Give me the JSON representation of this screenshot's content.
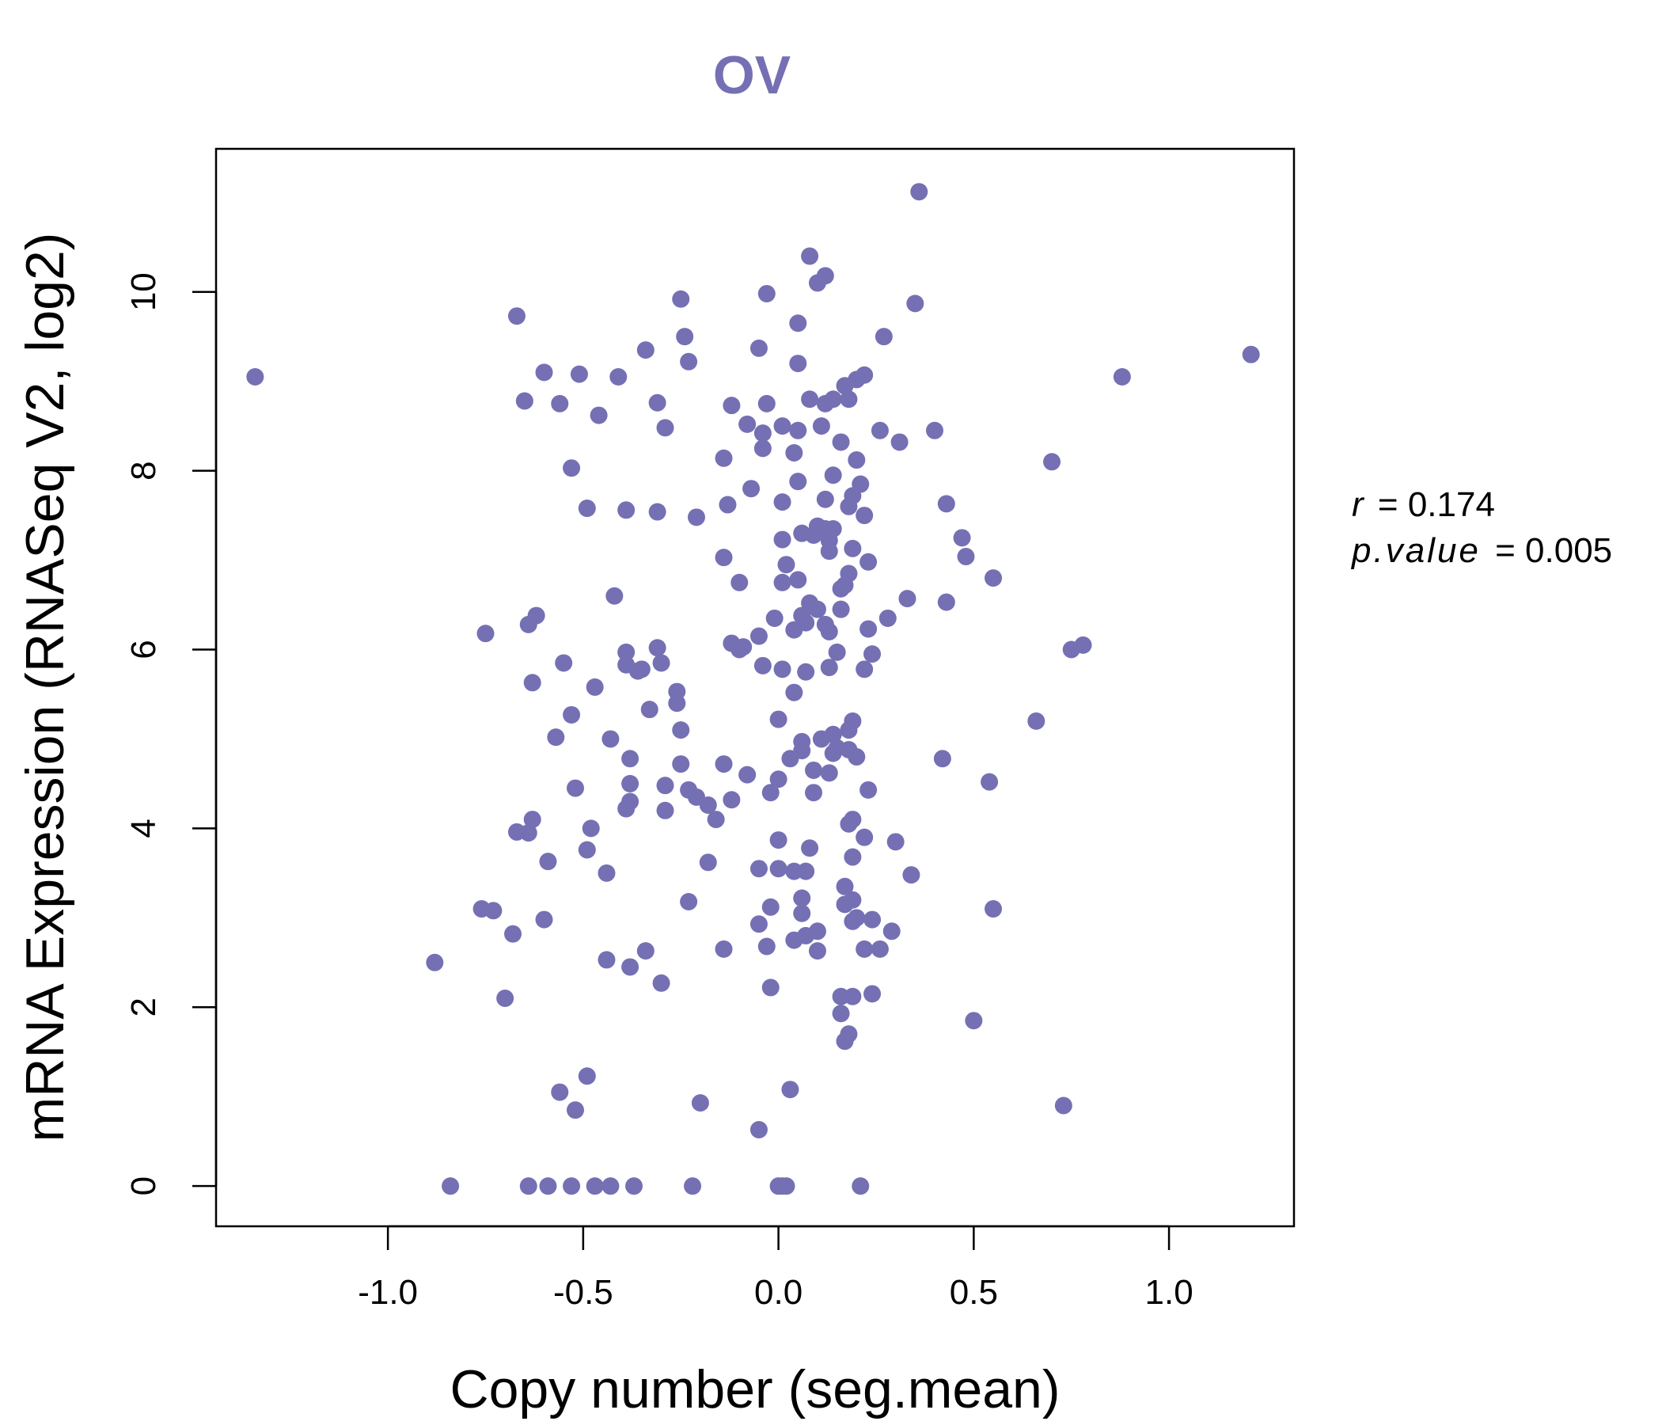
{
  "chart_data": {
    "type": "scatter",
    "title": "OV",
    "xlabel": "Copy number (seg.mean)",
    "ylabel": "mRNA Expression (RNASeq V2, log2)",
    "xlim": [
      -1.44,
      1.32
    ],
    "ylim": [
      -0.45,
      11.6
    ],
    "x_ticks": [
      -1.0,
      -0.5,
      0.0,
      0.5,
      1.0
    ],
    "x_tick_labels": [
      "-1.0",
      "-0.5",
      "0.0",
      "0.5",
      "1.0"
    ],
    "y_ticks": [
      0,
      2,
      4,
      6,
      8,
      10
    ],
    "y_tick_labels": [
      "0",
      "2",
      "4",
      "6",
      "8",
      "10"
    ],
    "grid": false,
    "point_color": "#7570b3",
    "stats": {
      "r_label": "r",
      "r_value": "0.174",
      "p_label": "p.value",
      "p_value": "0.005"
    },
    "points": [
      [
        -1.34,
        9.05
      ],
      [
        1.21,
        9.3
      ],
      [
        0.88,
        9.05
      ],
      [
        0.36,
        11.12
      ],
      [
        0.08,
        10.4
      ],
      [
        0.12,
        10.18
      ],
      [
        0.1,
        10.1
      ],
      [
        -0.03,
        9.98
      ],
      [
        -0.25,
        9.92
      ],
      [
        0.35,
        9.87
      ],
      [
        -0.67,
        9.73
      ],
      [
        0.05,
        9.65
      ],
      [
        0.27,
        9.5
      ],
      [
        -0.24,
        9.5
      ],
      [
        -0.34,
        9.35
      ],
      [
        -0.05,
        9.37
      ],
      [
        -0.23,
        9.22
      ],
      [
        0.05,
        9.2
      ],
      [
        -0.6,
        9.1
      ],
      [
        -0.51,
        9.08
      ],
      [
        -0.41,
        9.05
      ],
      [
        0.22,
        9.07
      ],
      [
        0.2,
        9.02
      ],
      [
        0.17,
        8.95
      ],
      [
        0.08,
        8.8
      ],
      [
        0.12,
        8.75
      ],
      [
        0.14,
        8.8
      ],
      [
        0.18,
        8.8
      ],
      [
        -0.65,
        8.78
      ],
      [
        -0.56,
        8.75
      ],
      [
        -0.31,
        8.76
      ],
      [
        -0.03,
        8.75
      ],
      [
        -0.12,
        8.73
      ],
      [
        -0.46,
        8.62
      ],
      [
        -0.08,
        8.52
      ],
      [
        0.01,
        8.5
      ],
      [
        0.11,
        8.5
      ],
      [
        0.05,
        8.45
      ],
      [
        -0.04,
        8.42
      ],
      [
        -0.29,
        8.48
      ],
      [
        0.26,
        8.45
      ],
      [
        0.4,
        8.45
      ],
      [
        0.16,
        8.32
      ],
      [
        0.31,
        8.32
      ],
      [
        0.04,
        8.2
      ],
      [
        -0.04,
        8.25
      ],
      [
        -0.14,
        8.14
      ],
      [
        0.2,
        8.12
      ],
      [
        0.7,
        8.1
      ],
      [
        -0.53,
        8.03
      ],
      [
        0.14,
        7.95
      ],
      [
        0.05,
        7.88
      ],
      [
        0.21,
        7.85
      ],
      [
        -0.07,
        7.8
      ],
      [
        0.19,
        7.72
      ],
      [
        0.12,
        7.68
      ],
      [
        0.01,
        7.65
      ],
      [
        0.43,
        7.63
      ],
      [
        -0.13,
        7.62
      ],
      [
        0.18,
        7.6
      ],
      [
        -0.49,
        7.58
      ],
      [
        -0.39,
        7.56
      ],
      [
        -0.31,
        7.54
      ],
      [
        0.22,
        7.5
      ],
      [
        -0.21,
        7.48
      ],
      [
        0.1,
        7.38
      ],
      [
        0.12,
        7.35
      ],
      [
        0.14,
        7.35
      ],
      [
        0.06,
        7.3
      ],
      [
        0.09,
        7.28
      ],
      [
        0.47,
        7.25
      ],
      [
        0.01,
        7.23
      ],
      [
        0.13,
        7.22
      ],
      [
        0.19,
        7.13
      ],
      [
        0.13,
        7.1
      ],
      [
        -0.14,
        7.03
      ],
      [
        0.48,
        7.04
      ],
      [
        0.23,
        6.98
      ],
      [
        0.02,
        6.95
      ],
      [
        0.18,
        6.85
      ],
      [
        0.55,
        6.8
      ],
      [
        0.05,
        6.78
      ],
      [
        -0.1,
        6.75
      ],
      [
        0.01,
        6.75
      ],
      [
        0.17,
        6.72
      ],
      [
        0.16,
        6.68
      ],
      [
        0.33,
        6.57
      ],
      [
        -0.42,
        6.6
      ],
      [
        0.43,
        6.53
      ],
      [
        0.08,
        6.52
      ],
      [
        0.1,
        6.45
      ],
      [
        0.16,
        6.45
      ],
      [
        0.06,
        6.38
      ],
      [
        0.28,
        6.35
      ],
      [
        -0.01,
        6.35
      ],
      [
        0.07,
        6.3
      ],
      [
        0.12,
        6.28
      ],
      [
        -0.62,
        6.38
      ],
      [
        -0.64,
        6.28
      ],
      [
        0.04,
        6.22
      ],
      [
        0.23,
        6.23
      ],
      [
        0.13,
        6.2
      ],
      [
        -0.75,
        6.18
      ],
      [
        -0.05,
        6.15
      ],
      [
        -0.12,
        6.07
      ],
      [
        -0.09,
        6.03
      ],
      [
        0.78,
        6.05
      ],
      [
        0.75,
        6.0
      ],
      [
        -0.1,
        6.0
      ],
      [
        -0.31,
        6.02
      ],
      [
        -0.39,
        5.97
      ],
      [
        0.15,
        5.97
      ],
      [
        0.24,
        5.95
      ],
      [
        -0.55,
        5.85
      ],
      [
        -0.39,
        5.83
      ],
      [
        -0.3,
        5.85
      ],
      [
        -0.35,
        5.78
      ],
      [
        -0.36,
        5.76
      ],
      [
        0.13,
        5.8
      ],
      [
        0.22,
        5.78
      ],
      [
        0.01,
        5.78
      ],
      [
        0.07,
        5.75
      ],
      [
        -0.04,
        5.82
      ],
      [
        -0.63,
        5.63
      ],
      [
        -0.47,
        5.58
      ],
      [
        0.04,
        5.52
      ],
      [
        -0.26,
        5.53
      ],
      [
        -0.26,
        5.4
      ],
      [
        -0.33,
        5.33
      ],
      [
        -0.53,
        5.27
      ],
      [
        0.0,
        5.22
      ],
      [
        0.19,
        5.2
      ],
      [
        0.66,
        5.2
      ],
      [
        0.18,
        5.1
      ],
      [
        -0.25,
        5.1
      ],
      [
        -0.57,
        5.02
      ],
      [
        -0.43,
        5.0
      ],
      [
        0.11,
        5.0
      ],
      [
        0.14,
        5.05
      ],
      [
        0.06,
        4.97
      ],
      [
        0.15,
        4.9
      ],
      [
        0.18,
        4.88
      ],
      [
        0.14,
        4.84
      ],
      [
        0.06,
        4.87
      ],
      [
        0.2,
        4.8
      ],
      [
        0.42,
        4.78
      ],
      [
        0.03,
        4.78
      ],
      [
        -0.38,
        4.78
      ],
      [
        -0.14,
        4.72
      ],
      [
        -0.25,
        4.72
      ],
      [
        0.09,
        4.65
      ],
      [
        0.13,
        4.62
      ],
      [
        -0.08,
        4.6
      ],
      [
        0.0,
        4.55
      ],
      [
        0.54,
        4.52
      ],
      [
        -0.38,
        4.5
      ],
      [
        -0.29,
        4.48
      ],
      [
        -0.52,
        4.45
      ],
      [
        -0.23,
        4.43
      ],
      [
        0.23,
        4.43
      ],
      [
        -0.02,
        4.4
      ],
      [
        0.09,
        4.4
      ],
      [
        -0.21,
        4.35
      ],
      [
        -0.12,
        4.32
      ],
      [
        -0.38,
        4.3
      ],
      [
        -0.18,
        4.26
      ],
      [
        -0.39,
        4.22
      ],
      [
        -0.29,
        4.2
      ],
      [
        -0.16,
        4.1
      ],
      [
        -0.63,
        4.1
      ],
      [
        0.19,
        4.1
      ],
      [
        0.18,
        4.05
      ],
      [
        -0.48,
        4.0
      ],
      [
        -0.67,
        3.96
      ],
      [
        -0.64,
        3.95
      ],
      [
        0.22,
        3.9
      ],
      [
        0.0,
        3.87
      ],
      [
        0.3,
        3.85
      ],
      [
        0.08,
        3.78
      ],
      [
        -0.49,
        3.76
      ],
      [
        0.19,
        3.68
      ],
      [
        -0.59,
        3.63
      ],
      [
        -0.18,
        3.62
      ],
      [
        -0.05,
        3.55
      ],
      [
        0.0,
        3.55
      ],
      [
        0.04,
        3.52
      ],
      [
        0.07,
        3.52
      ],
      [
        -0.44,
        3.5
      ],
      [
        0.34,
        3.48
      ],
      [
        0.17,
        3.35
      ],
      [
        0.06,
        3.22
      ],
      [
        0.19,
        3.2
      ],
      [
        0.17,
        3.15
      ],
      [
        -0.23,
        3.18
      ],
      [
        -0.02,
        3.12
      ],
      [
        -0.76,
        3.1
      ],
      [
        -0.73,
        3.08
      ],
      [
        0.55,
        3.1
      ],
      [
        0.06,
        3.05
      ],
      [
        0.2,
        3.0
      ],
      [
        0.24,
        2.98
      ],
      [
        -0.6,
        2.98
      ],
      [
        0.19,
        2.96
      ],
      [
        -0.05,
        2.93
      ],
      [
        0.1,
        2.85
      ],
      [
        0.29,
        2.85
      ],
      [
        -0.68,
        2.82
      ],
      [
        0.07,
        2.8
      ],
      [
        0.04,
        2.75
      ],
      [
        -0.03,
        2.68
      ],
      [
        0.22,
        2.65
      ],
      [
        0.26,
        2.65
      ],
      [
        -0.14,
        2.65
      ],
      [
        0.1,
        2.63
      ],
      [
        -0.34,
        2.63
      ],
      [
        -0.44,
        2.53
      ],
      [
        -0.88,
        2.5
      ],
      [
        -0.38,
        2.45
      ],
      [
        -0.3,
        2.27
      ],
      [
        -0.02,
        2.22
      ],
      [
        0.24,
        2.15
      ],
      [
        0.16,
        2.12
      ],
      [
        0.19,
        2.12
      ],
      [
        -0.7,
        2.1
      ],
      [
        0.16,
        1.93
      ],
      [
        0.5,
        1.85
      ],
      [
        0.18,
        1.7
      ],
      [
        0.17,
        1.62
      ],
      [
        -0.49,
        1.23
      ],
      [
        0.03,
        1.08
      ],
      [
        -0.56,
        1.05
      ],
      [
        -0.2,
        0.93
      ],
      [
        0.73,
        0.9
      ],
      [
        -0.52,
        0.85
      ],
      [
        -0.05,
        0.63
      ],
      [
        -0.84,
        0.0
      ],
      [
        -0.64,
        0.0
      ],
      [
        -0.59,
        0.0
      ],
      [
        -0.53,
        0.0
      ],
      [
        -0.47,
        0.0
      ],
      [
        -0.43,
        0.0
      ],
      [
        -0.37,
        0.0
      ],
      [
        -0.22,
        0.0
      ],
      [
        0.0,
        0.0
      ],
      [
        0.01,
        0.0
      ],
      [
        0.02,
        0.0
      ],
      [
        0.21,
        0.0
      ]
    ]
  }
}
